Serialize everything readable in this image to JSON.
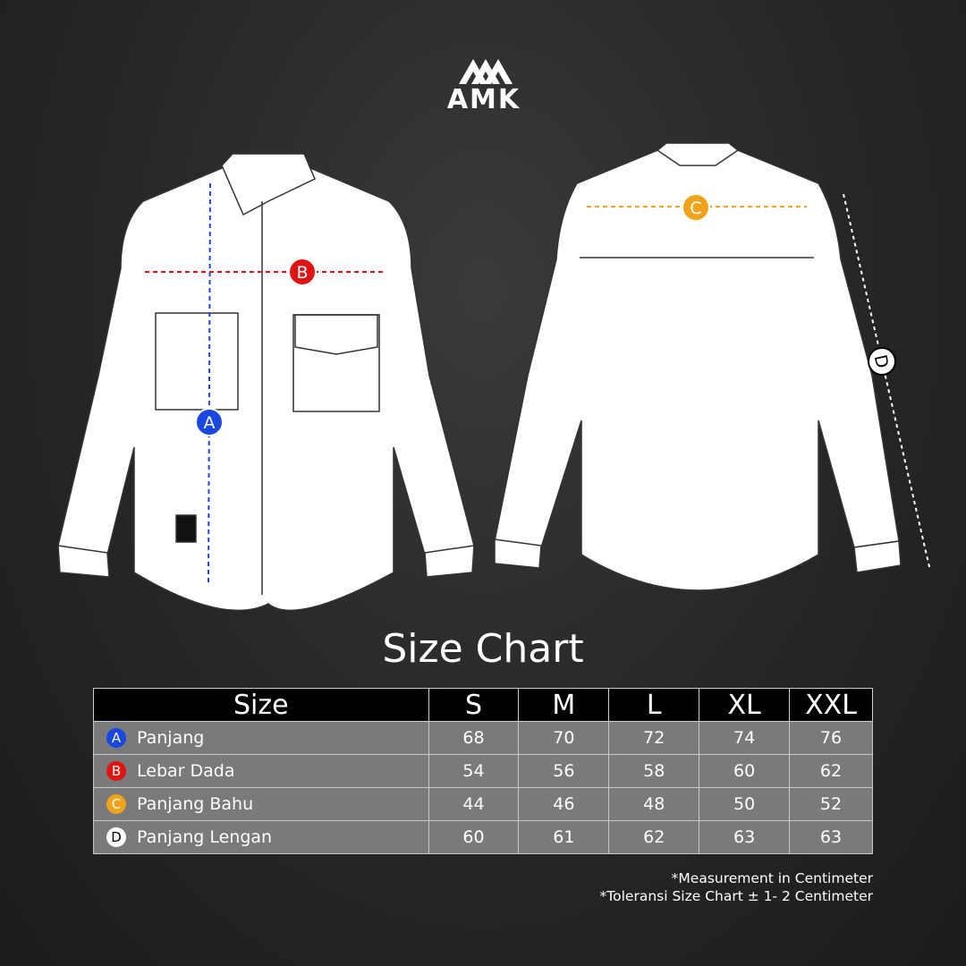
{
  "brand": {
    "logo_text": "AMK"
  },
  "markers": [
    {
      "letter": "A",
      "color": "#1a47e0"
    },
    {
      "letter": "B",
      "color": "#e11414"
    },
    {
      "letter": "C",
      "color": "#f0a21b"
    },
    {
      "letter": "D",
      "color": "#ffffff"
    }
  ],
  "title": "Size Chart",
  "table": {
    "header": [
      "Size",
      "S",
      "M",
      "L",
      "XL",
      "XXL"
    ],
    "rows": [
      {
        "marker": "A",
        "color": "#1a47e0",
        "text_color": "#ffffff",
        "label": "Panjang",
        "values": [
          "68",
          "70",
          "72",
          "74",
          "76"
        ]
      },
      {
        "marker": "B",
        "color": "#e11414",
        "text_color": "#ffffff",
        "label": "Lebar Dada",
        "values": [
          "54",
          "56",
          "58",
          "60",
          "62"
        ]
      },
      {
        "marker": "C",
        "color": "#f0a21b",
        "text_color": "#ffffff",
        "label": "Panjang Bahu",
        "values": [
          "44",
          "46",
          "48",
          "50",
          "52"
        ]
      },
      {
        "marker": "D",
        "color": "#ffffff",
        "text_color": "#000000",
        "label": "Panjang Lengan",
        "values": [
          "60",
          "61",
          "62",
          "63",
          "63"
        ]
      }
    ]
  },
  "notes": [
    "*Measurement in Centimeter",
    "*Toleransi Size Chart ± 1- 2 Centimeter"
  ]
}
